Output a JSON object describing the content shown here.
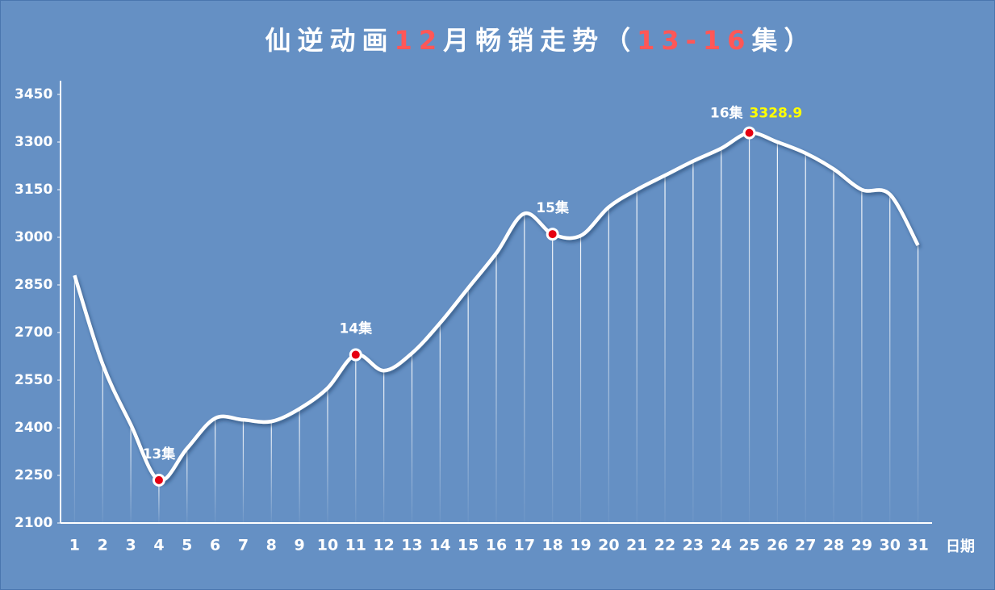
{
  "chart_data": {
    "type": "line",
    "title_segments": [
      {
        "text": "仙逆动画",
        "color": "#ffffff"
      },
      {
        "text": "12",
        "color": "#ff5757"
      },
      {
        "text": "月畅销走势（",
        "color": "#ffffff"
      },
      {
        "text": "13-16",
        "color": "#ff5757"
      },
      {
        "text": "集）",
        "color": "#ffffff"
      }
    ],
    "x_label": "日期",
    "categories": [
      "1",
      "2",
      "3",
      "4",
      "5",
      "6",
      "7",
      "8",
      "9",
      "10",
      "11",
      "12",
      "13",
      "14",
      "15",
      "16",
      "17",
      "18",
      "19",
      "20",
      "21",
      "22",
      "23",
      "24",
      "25",
      "26",
      "27",
      "28",
      "29",
      "30",
      "31"
    ],
    "values": [
      2880,
      2600,
      2410,
      2235,
      2335,
      2430,
      2425,
      2420,
      2460,
      2525,
      2630,
      2580,
      2635,
      2730,
      2840,
      2950,
      3075,
      3010,
      3005,
      3095,
      3150,
      3195,
      3240,
      3280,
      3328.9,
      3300,
      3265,
      3215,
      3150,
      3135,
      2975
    ],
    "color": "#ffffff",
    "ylim": [
      2100,
      3450
    ],
    "yticks": [
      2100,
      2250,
      2400,
      2550,
      2700,
      2850,
      3000,
      3150,
      3300,
      3450
    ],
    "annotations": [
      {
        "category": "4",
        "text": "13集"
      },
      {
        "category": "11",
        "text": "14集"
      },
      {
        "category": "18",
        "text": "15集"
      },
      {
        "category": "25",
        "text": "16集",
        "value_label": "3328.9",
        "value_label_color": "#ffff00"
      }
    ],
    "marker_color": "#e60012",
    "drop_lines": true
  }
}
